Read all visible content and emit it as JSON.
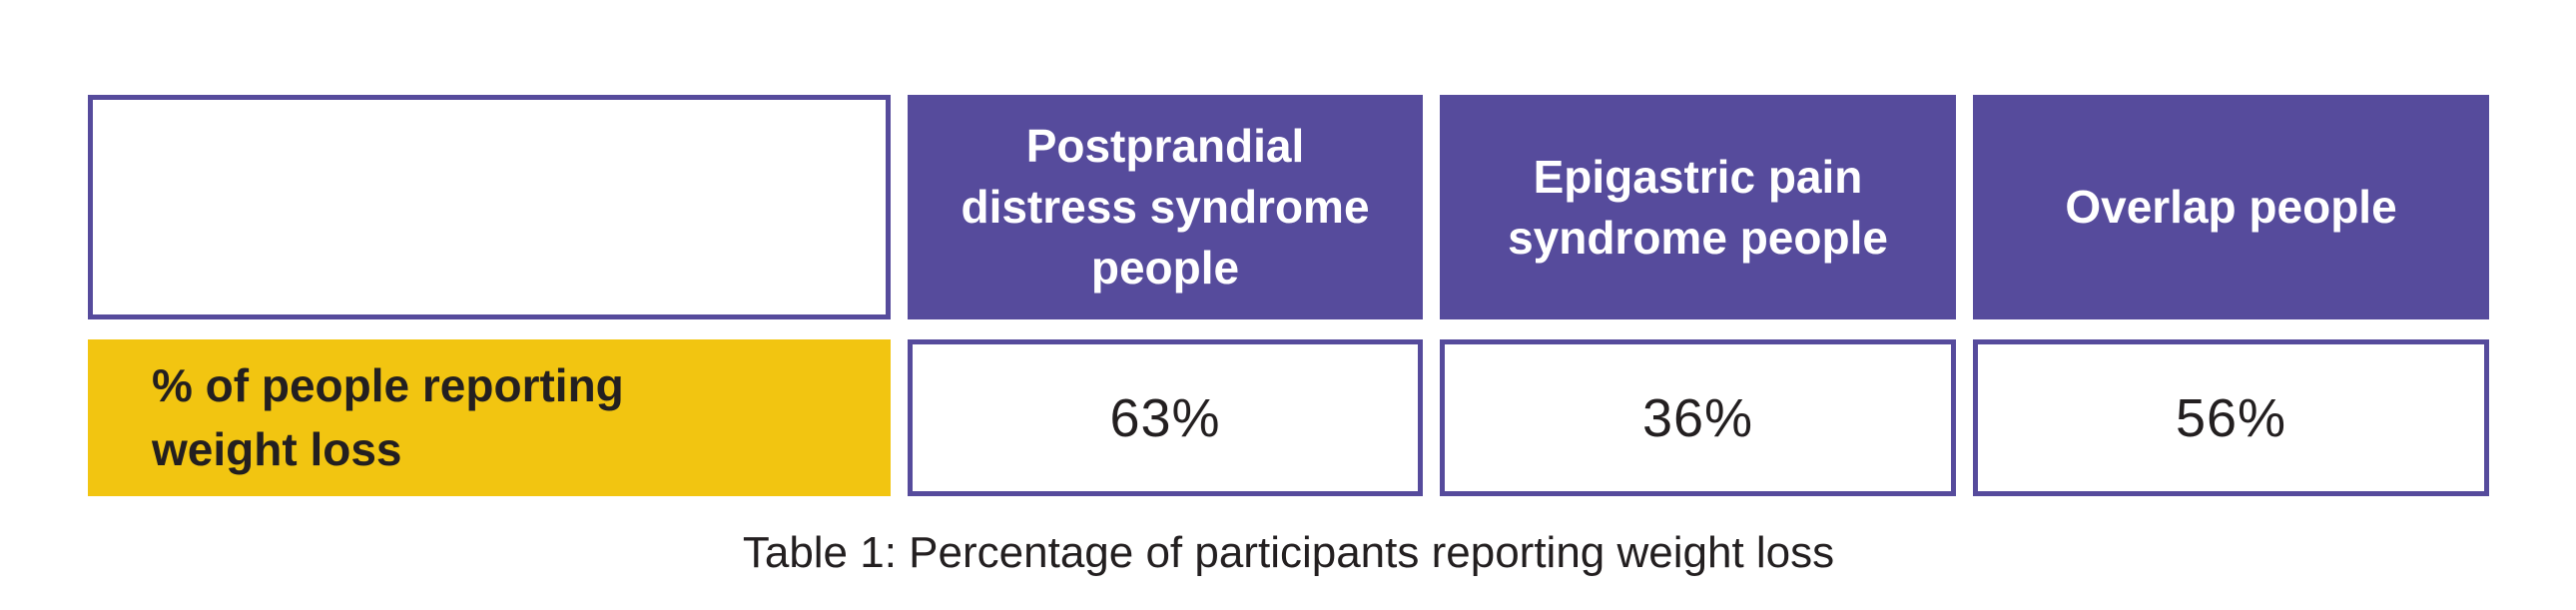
{
  "table": {
    "columns": [
      "Postprandial\ndistress syndrome\npeople",
      "Epigastric pain\nsyndrome people",
      "Overlap people"
    ],
    "row_label": "% of people reporting\nweight loss",
    "values": [
      "63%",
      "36%",
      "56%"
    ]
  },
  "caption": "Table 1: Percentage of participants reporting weight loss",
  "colors": {
    "header_purple": "#564B9C",
    "cell_border_purple": "#564B9C",
    "row_label_yellow": "#F2C511",
    "header_text": "#FFFFFF",
    "body_text": "#231F20",
    "cell_background": "#FFFFFF"
  },
  "chart_data": {
    "type": "table",
    "title": "Table 1: Percentage of participants reporting weight loss",
    "categories": [
      "Postprandial distress syndrome people",
      "Epigastric pain syndrome people",
      "Overlap people"
    ],
    "series": [
      {
        "name": "% of people reporting weight loss",
        "values": [
          63,
          36,
          56
        ]
      }
    ],
    "unit": "%",
    "layout": {
      "header_fill": "#564B9C",
      "row_label_fill": "#F2C511",
      "value_cell_fill": "#FFFFFF",
      "caption_position": "below-table-centered"
    }
  }
}
